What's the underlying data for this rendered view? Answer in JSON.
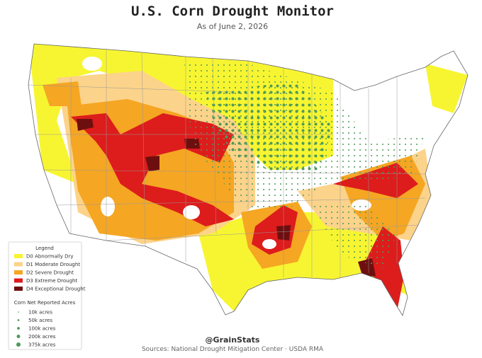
{
  "title": "U.S. Corn Drought Monitor",
  "subtitle": "As of June 2, 2026",
  "legend": {
    "title": "Legend",
    "drought_levels": [
      {
        "label": "D0 Abnormally Dry",
        "color": "#f7f531"
      },
      {
        "label": "D1 Moderate Drought",
        "color": "#fcd38a"
      },
      {
        "label": "D2 Severe Drought",
        "color": "#f5a623"
      },
      {
        "label": "D3 Extreme Drought",
        "color": "#dd1c1c"
      },
      {
        "label": "D4 Exceptional Drought",
        "color": "#6e0f0f"
      }
    ],
    "acres_title": "Corn Net Reported Acres",
    "acres": [
      "10k acres",
      "50k acres",
      "100k acres",
      "200k acres",
      "375k acres"
    ],
    "dot_color": "#4f9a5a"
  },
  "credit": "@GrainStats",
  "sources": "Sources: National Drought Mitigation Center · USDA RMA"
}
